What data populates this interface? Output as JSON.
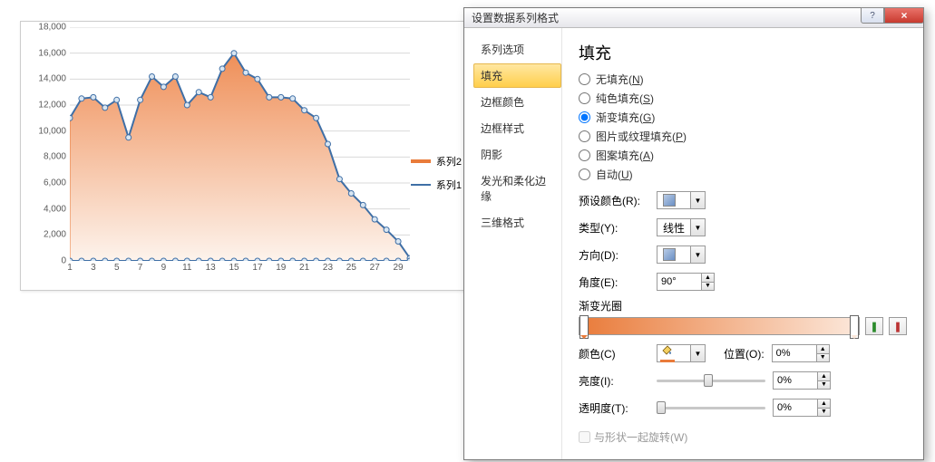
{
  "chart": {
    "type": "area+line",
    "series2_color": "#e97b3a",
    "series2_fill_top": "#ef8f58",
    "series2_fill_bottom": "#fdf3ec",
    "series1_color": "#3f6fa6",
    "marker_fill": "#d9e6f2",
    "grid_color": "#d9d9d9",
    "y_ticks": [
      0,
      2000,
      4000,
      6000,
      8000,
      10000,
      12000,
      14000,
      16000,
      18000
    ],
    "y_labels": [
      "0",
      "2,000",
      "4,000",
      "6,000",
      "8,000",
      "10,000",
      "12,000",
      "14,000",
      "16,000",
      "18,000"
    ],
    "ylim": [
      0,
      18000
    ],
    "x_ticks": [
      1,
      3,
      5,
      7,
      9,
      11,
      13,
      15,
      17,
      19,
      21,
      23,
      25,
      27,
      29
    ],
    "x_count": 30,
    "series_values": [
      11000,
      12500,
      12600,
      11800,
      12400,
      9500,
      12400,
      14200,
      13400,
      14200,
      12000,
      13000,
      12600,
      14800,
      16000,
      14500,
      14000,
      12600,
      12600,
      12500,
      11600,
      11000,
      9000,
      6300,
      5200,
      4300,
      3200,
      2400,
      1500,
      200
    ],
    "legend": {
      "s2": "系列2",
      "s1": "系列1"
    }
  },
  "dialog": {
    "title": "设置数据系列格式",
    "tabs": [
      "系列选项",
      "填充",
      "边框颜色",
      "边框样式",
      "阴影",
      "发光和柔化边缘",
      "三维格式"
    ],
    "active_tab": 1,
    "panel_title": "填充",
    "radios": {
      "none": "无填充(N)",
      "solid": "纯色填充(S)",
      "gradient": "渐变填充(G)",
      "picture": "图片或纹理填充(P)",
      "pattern": "图案填充(A)",
      "auto": "自动(U)"
    },
    "selected_radio": "gradient",
    "preset_label": "预设颜色(R):",
    "type_label": "类型(Y):",
    "type_value": "线性",
    "direction_label": "方向(D):",
    "angle_label": "角度(E):",
    "angle_value": "90°",
    "stops_label": "渐变光圈",
    "color_label": "颜色(C)",
    "position_label": "位置(O):",
    "position_value": "0%",
    "brightness_label": "亮度(I):",
    "brightness_value": "0%",
    "transparency_label": "透明度(T):",
    "transparency_value": "0%",
    "rotate_label": "与形状一起旋转(W)",
    "grad_start": "#e97b3a",
    "grad_end": "#fce8db"
  }
}
